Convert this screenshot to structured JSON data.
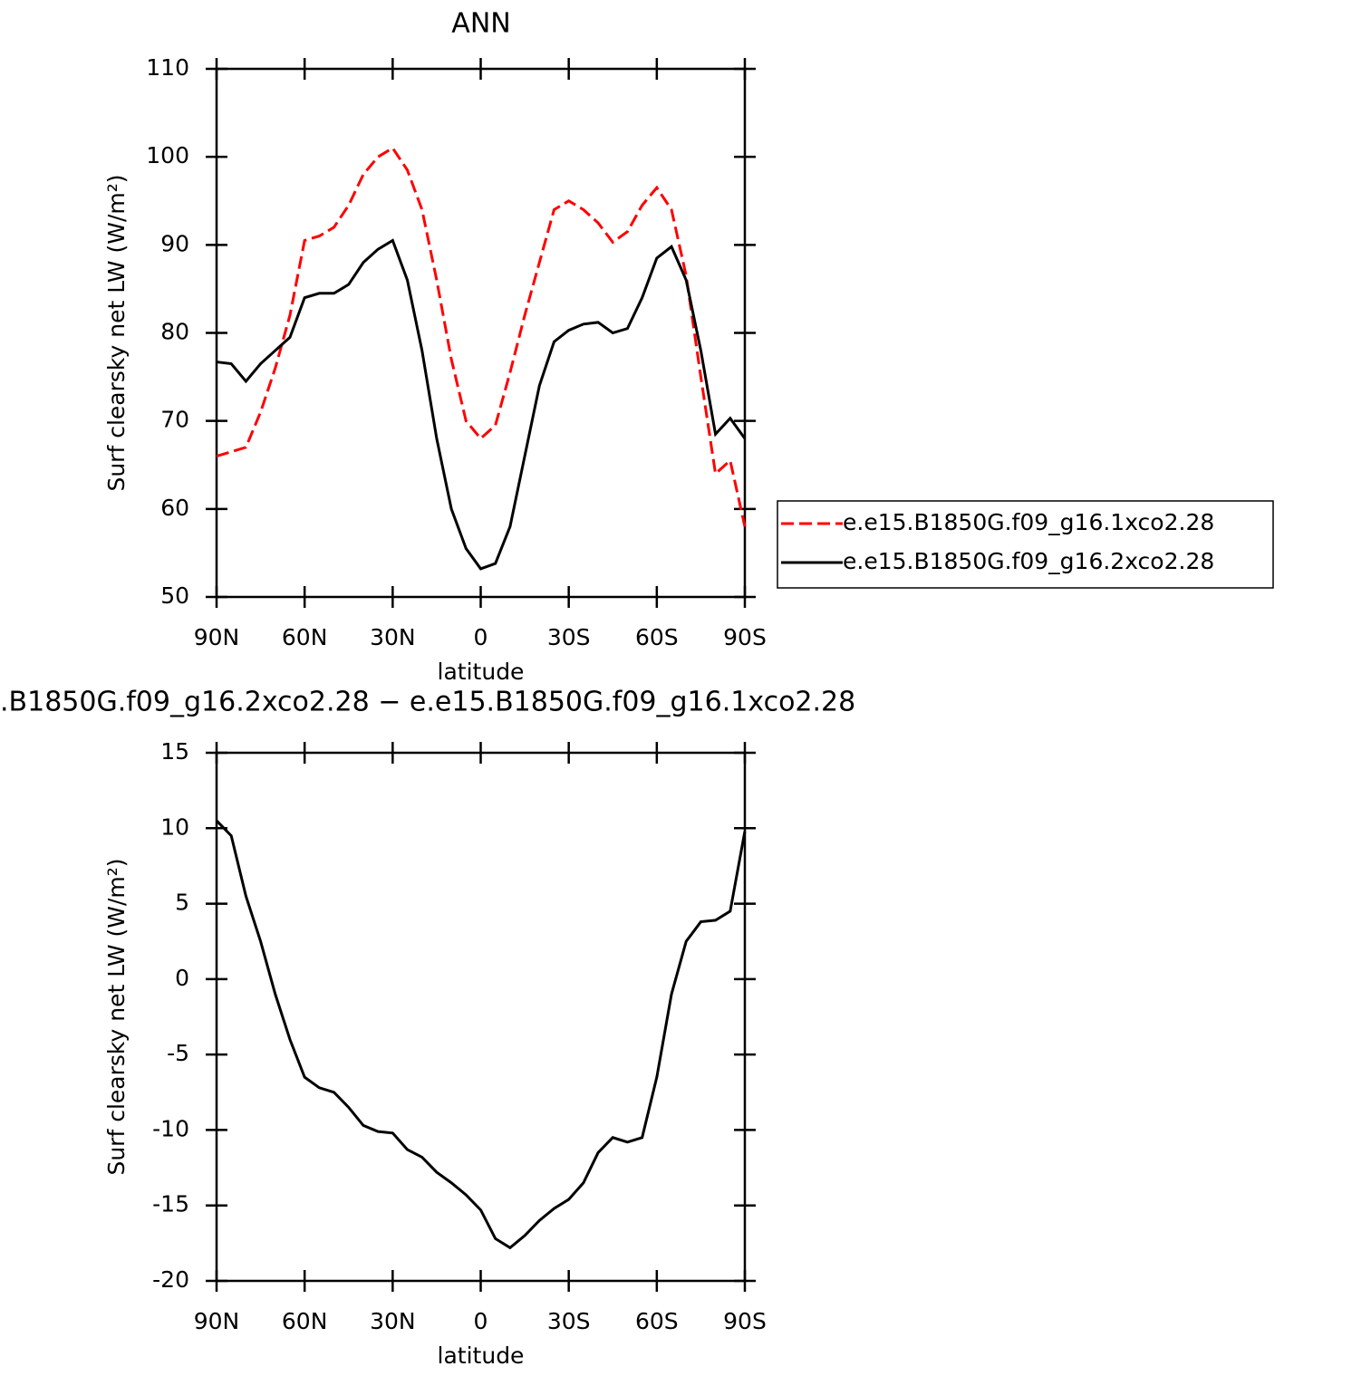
{
  "chart_data": [
    {
      "type": "line",
      "title": "ANN",
      "xlabel": "latitude",
      "ylabel": "Surf clearsky net LW (W/m²)",
      "x": [
        90,
        85,
        80,
        75,
        70,
        65,
        60,
        55,
        50,
        45,
        40,
        35,
        30,
        25,
        20,
        15,
        10,
        5,
        0,
        -5,
        -10,
        -15,
        -20,
        -25,
        -30,
        -35,
        -40,
        -45,
        -50,
        -55,
        -60,
        -65,
        -70,
        -75,
        -80,
        -85,
        -90
      ],
      "series": [
        {
          "name": "e.e15.B1850G.f09_g16.1xco2.28",
          "color": "#ff0000",
          "line_style": "dashed",
          "values": [
            66,
            66.5,
            67,
            71,
            76,
            82,
            90.5,
            91,
            92,
            94.5,
            98,
            100,
            101,
            98.5,
            94,
            86,
            77,
            70,
            68,
            69.5,
            75.5,
            82,
            88,
            94,
            95,
            94,
            92.5,
            90.3,
            91.5,
            94.5,
            96.5,
            94,
            86.5,
            75,
            64,
            65.5,
            58
          ]
        },
        {
          "name": "e.e15.B1850G.f09_g16.2xco2.28",
          "color": "#000000",
          "line_style": "solid",
          "values": [
            76.7,
            76.5,
            74.5,
            76.5,
            78,
            79.5,
            84,
            84.5,
            84.5,
            85.5,
            88,
            89.5,
            90.5,
            86,
            78,
            68,
            60,
            55.5,
            53.2,
            53.8,
            58,
            66,
            74,
            79,
            80.3,
            81,
            81.2,
            80,
            80.5,
            84,
            88.5,
            89.8,
            86,
            78,
            68.5,
            70.3,
            68
          ]
        }
      ],
      "xlim": [
        90,
        -90
      ],
      "xticks": [
        {
          "value": 90,
          "label": "90N"
        },
        {
          "value": 60,
          "label": "60N"
        },
        {
          "value": 30,
          "label": "30N"
        },
        0,
        {
          "value": -30,
          "label": "30S"
        },
        {
          "value": -60,
          "label": "60S"
        },
        {
          "value": -90,
          "label": "90S"
        }
      ],
      "ylim": [
        50,
        110
      ],
      "yticks": [
        50,
        60,
        70,
        80,
        90,
        100,
        110
      ],
      "legend": "right"
    },
    {
      "type": "line",
      "title": ".B1850G.f09_g16.2xco2.28 − e.e15.B1850G.f09_g16.1xco2.28",
      "xlabel": "latitude",
      "ylabel": "Surf clearsky net LW (W/m²)",
      "x": [
        90,
        85,
        80,
        75,
        70,
        65,
        60,
        55,
        50,
        45,
        40,
        35,
        30,
        25,
        20,
        15,
        10,
        5,
        0,
        -5,
        -10,
        -15,
        -20,
        -25,
        -30,
        -35,
        -40,
        -45,
        -50,
        -55,
        -60,
        -65,
        -70,
        -75,
        -80,
        -85,
        -90
      ],
      "series": [
        {
          "color": "#000000",
          "line_style": "solid",
          "values": [
            10.5,
            9.5,
            5.5,
            2.5,
            -1,
            -4,
            -6.5,
            -7.2,
            -7.5,
            -8.5,
            -9.7,
            -10.1,
            -10.2,
            -11.3,
            -11.8,
            -12.8,
            -13.5,
            -14.3,
            -15.3,
            -17.2,
            -17.8,
            -17,
            -16,
            -15.2,
            -14.6,
            -13.5,
            -11.5,
            -10.5,
            -10.8,
            -10.5,
            -6.5,
            -1,
            2.5,
            3.8,
            3.9,
            4.5,
            9.8
          ]
        }
      ],
      "xlim": [
        90,
        -90
      ],
      "xticks": [
        {
          "value": 90,
          "label": "90N"
        },
        {
          "value": 60,
          "label": "60N"
        },
        {
          "value": 30,
          "label": "30N"
        },
        0,
        {
          "value": -30,
          "label": "30S"
        },
        {
          "value": -60,
          "label": "60S"
        },
        {
          "value": -90,
          "label": "90S"
        }
      ],
      "ylim": [
        -20,
        15
      ],
      "yticks": [
        -20,
        -15,
        -10,
        -5,
        0,
        5,
        10,
        15
      ]
    }
  ]
}
